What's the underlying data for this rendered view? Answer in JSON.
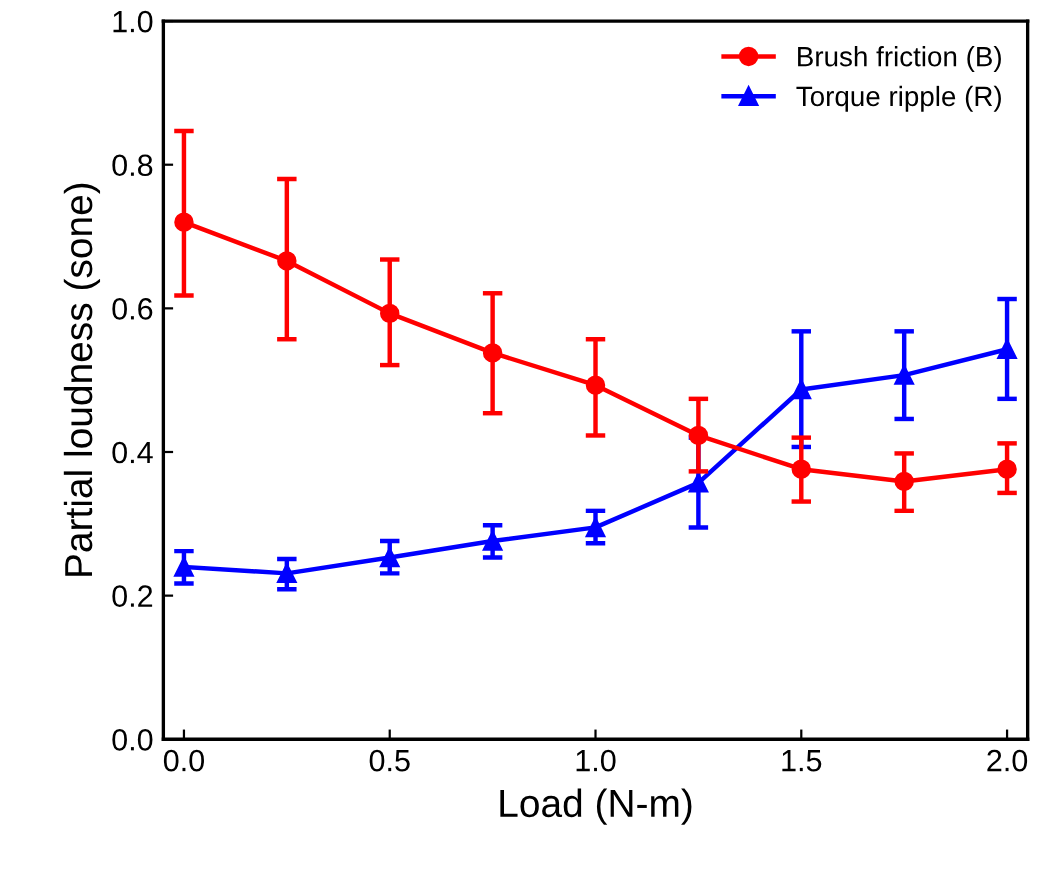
{
  "chart_data": {
    "type": "line",
    "xlabel": "Load (N-m)",
    "ylabel": "Partial loudness (sone)",
    "x": [
      0,
      0.25,
      0.5,
      0.75,
      1.0,
      1.25,
      1.5,
      1.75,
      2.0
    ],
    "series": [
      {
        "name": "Brush friction (B)",
        "color": "#ff0000",
        "marker": "circle",
        "values": [
          0.72,
          0.666,
          0.593,
          0.538,
          0.493,
          0.423,
          0.376,
          0.359,
          0.376
        ],
        "errors": [
          [
            0.618,
            0.847
          ],
          [
            0.557,
            0.78
          ],
          [
            0.521,
            0.668
          ],
          [
            0.454,
            0.621
          ],
          [
            0.423,
            0.557
          ],
          [
            0.373,
            0.474
          ],
          [
            0.331,
            0.42
          ],
          [
            0.318,
            0.398
          ],
          [
            0.343,
            0.412
          ]
        ]
      },
      {
        "name": "Torque ripple (R)",
        "color": "#0000ff",
        "marker": "triangle",
        "values": [
          0.24,
          0.231,
          0.253,
          0.276,
          0.295,
          0.357,
          0.487,
          0.507,
          0.543
        ],
        "errors": [
          [
            0.217,
            0.262
          ],
          [
            0.209,
            0.251
          ],
          [
            0.231,
            0.276
          ],
          [
            0.253,
            0.298
          ],
          [
            0.273,
            0.318
          ],
          [
            0.295,
            0.42
          ],
          [
            0.407,
            0.568
          ],
          [
            0.446,
            0.568
          ],
          [
            0.474,
            0.613
          ]
        ]
      }
    ],
    "xlim": [
      -0.05,
      2.05
    ],
    "ylim": [
      0,
      1.0
    ],
    "xticks": [
      {
        "value": 0,
        "label": "0.0"
      },
      {
        "value": 0.5,
        "label": "0.5"
      },
      {
        "value": 1.0,
        "label": "1.0"
      },
      {
        "value": 1.5,
        "label": "1.5"
      },
      {
        "value": 2.0,
        "label": "2.0"
      }
    ],
    "yticks": [
      {
        "value": 0,
        "label": "0.0"
      },
      {
        "value": 0.2,
        "label": "0.2"
      },
      {
        "value": 0.4,
        "label": "0.4"
      },
      {
        "value": 0.6,
        "label": "0.6"
      },
      {
        "value": 0.8,
        "label": "0.8"
      },
      {
        "value": 1.0,
        "label": "1.0"
      }
    ],
    "legend": "top right",
    "grid": false,
    "line_style": "solid"
  }
}
